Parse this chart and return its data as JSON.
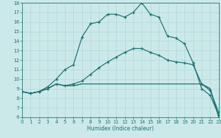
{
  "xlabel": "Humidex (Indice chaleur)",
  "xlim": [
    0,
    23
  ],
  "ylim": [
    6,
    18
  ],
  "xticks": [
    0,
    1,
    2,
    3,
    4,
    5,
    6,
    7,
    8,
    9,
    10,
    11,
    12,
    13,
    14,
    15,
    16,
    17,
    18,
    19,
    20,
    21,
    22,
    23
  ],
  "yticks": [
    6,
    7,
    8,
    9,
    10,
    11,
    12,
    13,
    14,
    15,
    16,
    17,
    18
  ],
  "bg_color": "#cce9e9",
  "line_color": "#1a7070",
  "grid_color": "#b0d5d5",
  "line1_x": [
    0,
    1,
    2,
    3,
    4,
    5,
    6,
    7,
    8,
    9,
    10,
    11,
    12,
    13,
    14,
    15,
    16,
    17,
    18,
    19,
    20,
    21,
    22,
    23
  ],
  "line1_y": [
    8.7,
    8.5,
    8.7,
    9.0,
    9.5,
    9.3,
    9.3,
    9.5,
    9.5,
    9.5,
    9.5,
    9.5,
    9.5,
    9.5,
    9.5,
    9.5,
    9.5,
    9.5,
    9.5,
    9.5,
    9.5,
    9.5,
    9.0,
    6.0
  ],
  "line2_x": [
    0,
    1,
    2,
    3,
    4,
    5,
    6,
    7,
    8,
    9,
    10,
    11,
    12,
    13,
    14,
    15,
    16,
    17,
    18,
    19,
    20,
    21,
    22,
    23
  ],
  "line2_y": [
    8.7,
    8.5,
    8.7,
    9.0,
    9.5,
    9.3,
    9.3,
    9.5,
    9.5,
    9.5,
    9.5,
    9.5,
    9.5,
    9.5,
    9.5,
    9.5,
    9.5,
    9.5,
    9.5,
    9.5,
    9.5,
    9.5,
    9.0,
    6.0
  ],
  "line3_x": [
    0,
    1,
    2,
    3,
    4,
    5,
    6,
    7,
    8,
    9,
    10,
    11,
    12,
    13,
    14,
    15,
    16,
    17,
    18,
    19,
    20,
    21,
    22,
    23
  ],
  "line3_y": [
    8.7,
    8.5,
    8.7,
    9.2,
    10.0,
    11.0,
    11.5,
    14.4,
    15.8,
    16.0,
    16.8,
    16.8,
    16.5,
    17.0,
    18.0,
    16.8,
    16.5,
    14.5,
    14.3,
    13.7,
    11.7,
    9.0,
    8.3,
    6.2
  ],
  "line4_x": [
    0,
    1,
    2,
    3,
    4,
    5,
    6,
    7,
    8,
    9,
    10,
    11,
    12,
    13,
    14,
    15,
    16,
    17,
    18,
    19,
    20,
    21,
    22,
    23
  ],
  "line4_y": [
    8.7,
    8.5,
    8.7,
    9.0,
    9.5,
    9.3,
    9.5,
    9.8,
    10.5,
    11.2,
    11.8,
    12.3,
    12.8,
    13.2,
    13.2,
    12.8,
    12.5,
    12.0,
    11.8,
    11.7,
    11.5,
    9.5,
    8.8,
    6.5
  ]
}
